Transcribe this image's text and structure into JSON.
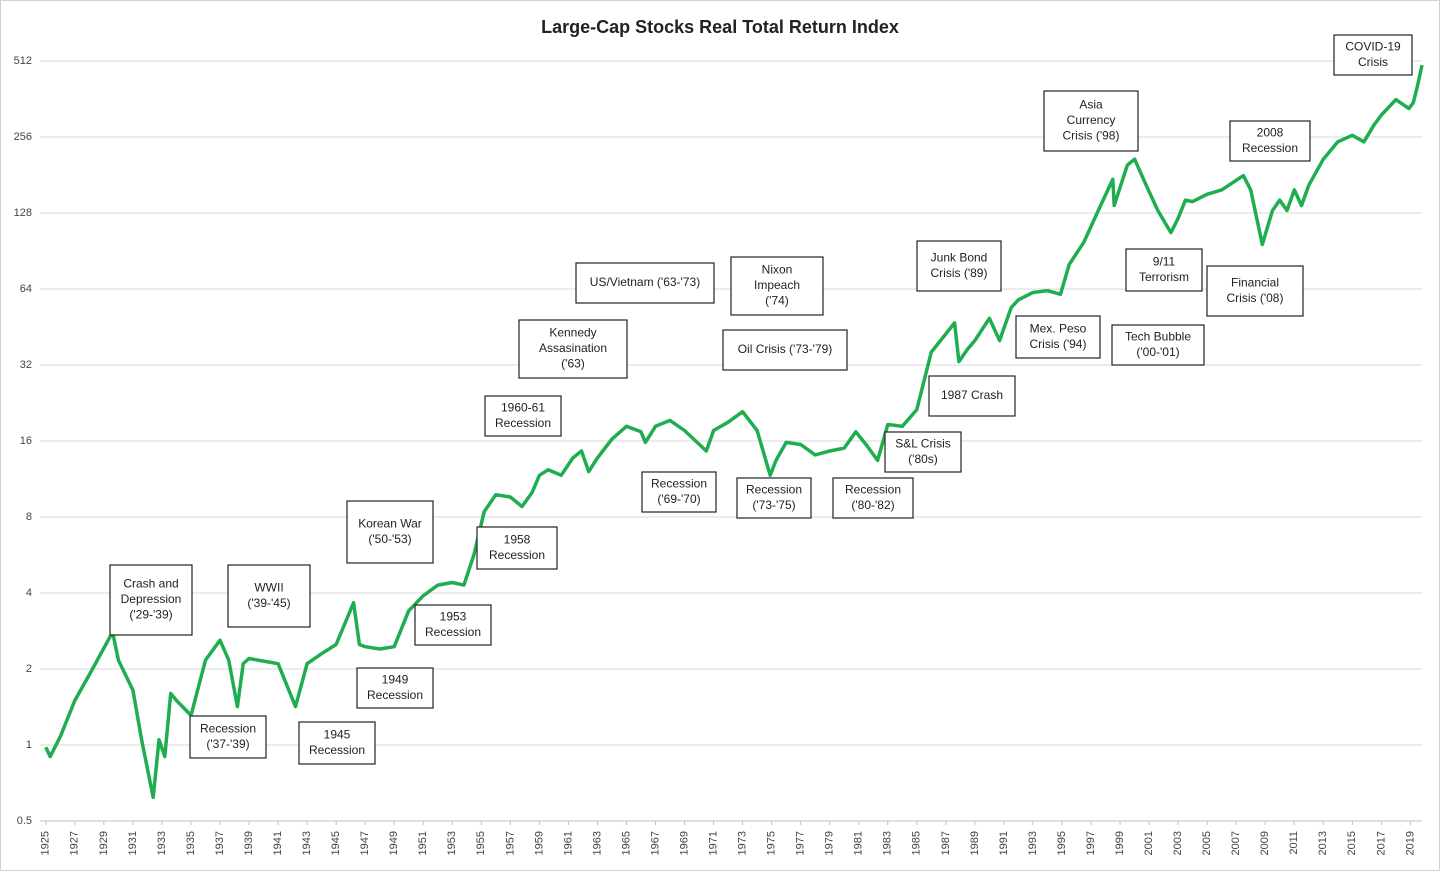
{
  "chart_data": {
    "type": "line",
    "title": "Large-Cap Stocks Real Total Return Index",
    "log_scale": true,
    "grid": true,
    "xlim": [
      1924.6,
      2019.8
    ],
    "ylim": [
      0.5,
      512
    ],
    "yticks": [
      0.5,
      1,
      2,
      4,
      8,
      16,
      32,
      64,
      128,
      256,
      512
    ],
    "xticks": [
      1925,
      1927,
      1929,
      1931,
      1933,
      1935,
      1937,
      1939,
      1941,
      1943,
      1945,
      1947,
      1949,
      1951,
      1953,
      1955,
      1957,
      1959,
      1961,
      1963,
      1965,
      1967,
      1969,
      1971,
      1973,
      1975,
      1977,
      1979,
      1981,
      1983,
      1985,
      1987,
      1989,
      1991,
      1993,
      1995,
      1997,
      1999,
      2001,
      2003,
      2005,
      2007,
      2009,
      2011,
      2013,
      2015,
      2017,
      2019
    ],
    "series": [
      {
        "color": "#1fae4f",
        "x": [
          1925,
          1925.3,
          1926,
          1927,
          1928,
          1929.6,
          1930,
          1931,
          1931.6,
          1932.4,
          1932.8,
          1933.2,
          1933.6,
          1934,
          1935,
          1936,
          1937,
          1937.6,
          1938.2,
          1938.6,
          1939,
          1940,
          1941,
          1942.2,
          1943,
          1944,
          1945,
          1946.2,
          1946.6,
          1947,
          1948,
          1949,
          1950,
          1951,
          1952,
          1953,
          1953.8,
          1954.5,
          1955.2,
          1956,
          1957,
          1957.8,
          1958.5,
          1959,
          1959.6,
          1960.5,
          1961.3,
          1961.9,
          1962.4,
          1963,
          1964,
          1965,
          1966,
          1966.3,
          1967,
          1968,
          1969,
          1970.5,
          1971,
          1972,
          1973,
          1974,
          1974.9,
          1975.3,
          1976,
          1977,
          1978,
          1979,
          1980,
          1980.8,
          1981.5,
          1982.3,
          1983,
          1984,
          1985,
          1986,
          1987.6,
          1987.9,
          1988.5,
          1989,
          1990,
          1990.7,
          1991.5,
          1992,
          1993,
          1994,
          1994.9,
          1995.5,
          1996.5,
          1997.5,
          1998.5,
          1998.6,
          1999.5,
          2000,
          2000.8,
          2001.6,
          2002.5,
          2003,
          2003.5,
          2004,
          2005,
          2006,
          2007.5,
          2008,
          2008.8,
          2009.5,
          2010,
          2010.5,
          2011,
          2011.5,
          2012,
          2013,
          2014,
          2015,
          2015.8,
          2016.5,
          2017,
          2018,
          2018.9,
          2019.2,
          2019.5,
          2019.8
        ],
        "values": [
          0.98,
          0.9,
          1.08,
          1.5,
          1.9,
          2.8,
          2.17,
          1.65,
          1.05,
          0.62,
          1.05,
          0.9,
          1.6,
          1.5,
          1.31,
          2.17,
          2.6,
          2.17,
          1.42,
          2.1,
          2.2,
          2.15,
          2.1,
          1.42,
          2.1,
          2.3,
          2.5,
          3.66,
          2.5,
          2.45,
          2.4,
          2.45,
          3.4,
          3.9,
          4.3,
          4.4,
          4.3,
          5.7,
          8.4,
          9.8,
          9.6,
          8.8,
          10,
          11.7,
          12.3,
          11.7,
          13.7,
          14.6,
          12.1,
          13.7,
          16.3,
          18.3,
          17.4,
          15.8,
          18.3,
          19.3,
          17.6,
          14.6,
          17.6,
          19,
          20.9,
          17.6,
          11.7,
          13.4,
          15.8,
          15.5,
          14.1,
          14.6,
          15,
          17.4,
          15.5,
          13.4,
          18.6,
          18.3,
          21.3,
          36,
          47,
          33,
          37,
          40,
          49,
          40,
          54,
          58,
          62,
          63,
          61,
          80,
          98,
          131,
          174,
          137,
          198,
          209,
          165,
          131,
          107,
          122,
          144,
          142,
          152,
          158,
          180,
          158,
          96,
          131,
          144,
          131,
          158,
          137,
          165,
          209,
          245,
          260,
          245,
          286,
          313,
          360,
          332,
          350,
          410,
          493
        ]
      }
    ],
    "annotations": [
      [
        "Crash and",
        "Depression",
        "('29-'39)"
      ],
      [
        "WWII",
        "('39-'45)"
      ],
      [
        "Recession",
        "('37-'39)"
      ],
      [
        "1945",
        "Recession"
      ],
      [
        "Korean War",
        "('50-'53)"
      ],
      [
        "1949",
        "Recession"
      ],
      [
        "1953",
        "Recession"
      ],
      [
        "1958",
        "Recession"
      ],
      [
        "1960-61",
        "Recession"
      ],
      [
        "Kennedy",
        "Assasination",
        "('63)"
      ],
      [
        "US/Vietnam ('63-'73)"
      ],
      [
        "Nixon",
        "Impeach",
        "('74)"
      ],
      [
        "Oil Crisis ('73-'79)"
      ],
      [
        "Recession",
        "('69-'70)"
      ],
      [
        "Recession",
        "('73-'75)"
      ],
      [
        "Recession",
        "('80-'82)"
      ],
      [
        "S&L Crisis",
        "('80s)"
      ],
      [
        "1987 Crash"
      ],
      [
        "Junk Bond",
        "Crisis ('89)"
      ],
      [
        "Mex. Peso",
        "Crisis ('94)"
      ],
      [
        "Asia",
        "Currency",
        "Crisis ('98)"
      ],
      [
        "9/11",
        "Terrorism"
      ],
      [
        "Tech Bubble",
        "('00-'01)"
      ],
      [
        "Financial",
        "Crisis ('08)"
      ],
      [
        "2008",
        "Recession"
      ],
      [
        "COVID-19",
        "Crisis"
      ]
    ]
  }
}
